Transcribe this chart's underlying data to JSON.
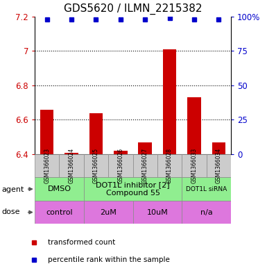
{
  "title": "GDS5620 / ILMN_2215382",
  "samples": [
    "GSM1366023",
    "GSM1366024",
    "GSM1366025",
    "GSM1366026",
    "GSM1366027",
    "GSM1366028",
    "GSM1366033",
    "GSM1366034"
  ],
  "bar_values": [
    6.66,
    6.41,
    6.64,
    6.42,
    6.47,
    7.01,
    6.73,
    6.47
  ],
  "percentile_values": [
    98,
    98,
    98,
    98,
    98,
    99,
    98,
    98
  ],
  "ylim": [
    6.4,
    7.2
  ],
  "yticks": [
    6.4,
    6.6,
    6.8,
    7.0,
    7.2
  ],
  "ytick_labels_left": [
    "6.4",
    "6.6",
    "6.8",
    "7",
    "7.2"
  ],
  "right_yticks": [
    0,
    25,
    50,
    75,
    100
  ],
  "right_ytick_labels": [
    "0",
    "25",
    "50",
    "75",
    "100%"
  ],
  "bar_color": "#cc0000",
  "percentile_color": "#0000cc",
  "bar_width": 0.55,
  "agent_groups": [
    {
      "label": "DMSO",
      "start": 0,
      "end": 2,
      "color": "#90ee90",
      "fontsize": 8
    },
    {
      "label": "DOT1L inhibitor [2]\nCompound 55",
      "start": 2,
      "end": 6,
      "color": "#90ee90",
      "fontsize": 8
    },
    {
      "label": "DOT1L siRNA",
      "start": 6,
      "end": 8,
      "color": "#90ee90",
      "fontsize": 6.5
    }
  ],
  "dose_groups": [
    {
      "label": "control",
      "start": 0,
      "end": 2,
      "color": "#dd77dd"
    },
    {
      "label": "2uM",
      "start": 2,
      "end": 4,
      "color": "#dd77dd"
    },
    {
      "label": "10uM",
      "start": 4,
      "end": 6,
      "color": "#dd77dd"
    },
    {
      "label": "n/a",
      "start": 6,
      "end": 8,
      "color": "#dd77dd"
    }
  ],
  "legend_items": [
    {
      "color": "#cc0000",
      "label": "transformed count"
    },
    {
      "color": "#0000cc",
      "label": "percentile rank within the sample"
    }
  ],
  "left_tick_color": "#cc0000",
  "right_tick_color": "#0000cc",
  "sample_box_color": "#cccccc",
  "title_fontsize": 11,
  "grid_lines": [
    6.6,
    6.8,
    7.0
  ],
  "dot_size": 5
}
